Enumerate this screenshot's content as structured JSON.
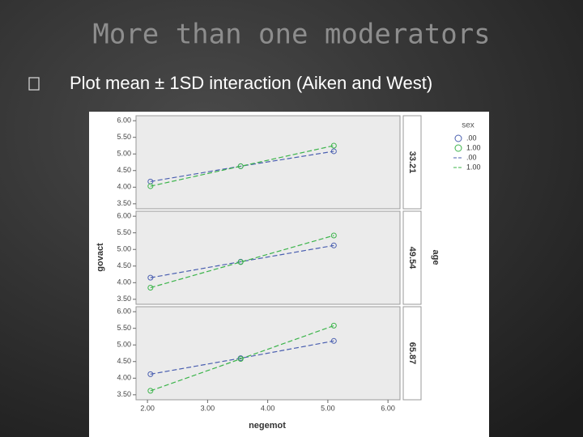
{
  "slide": {
    "title": "More than one moderators",
    "bullet": "Plot mean ± 1SD interaction (Aiken and West)"
  },
  "figure": {
    "y_label": "govact",
    "x_label": "negemot",
    "facet_label": "age",
    "legend_title": "sex"
  },
  "chart_data": [
    {
      "type": "line",
      "panel_label": "33.21",
      "x": [
        2.05,
        3.55,
        5.1
      ],
      "xlim": [
        1.81,
        6.2
      ],
      "ylim": [
        3.35,
        6.15
      ],
      "yticks": [
        {
          "value": 3.5,
          "label": "3.50"
        },
        {
          "value": 4,
          "label": "4.00"
        },
        {
          "value": 4.5,
          "label": "4.50"
        },
        {
          "value": 5,
          "label": "5.00"
        },
        {
          "value": 5.5,
          "label": "5.50"
        },
        {
          "value": 6,
          "label": "6.00"
        }
      ],
      "series": [
        {
          "name": ".00",
          "color": "#4a5fb0",
          "values": [
            4.17,
            4.63,
            5.08
          ]
        },
        {
          "name": "1.00",
          "color": "#3cb44b",
          "values": [
            4.03,
            4.63,
            5.25
          ]
        }
      ]
    },
    {
      "type": "line",
      "panel_label": "49.54",
      "x": [
        2.05,
        3.55,
        5.1
      ],
      "xlim": [
        1.81,
        6.2
      ],
      "ylim": [
        3.35,
        6.15
      ],
      "yticks": [
        {
          "value": 3.5,
          "label": "3.50"
        },
        {
          "value": 4,
          "label": "4.00"
        },
        {
          "value": 4.5,
          "label": "4.50"
        },
        {
          "value": 5,
          "label": "5.00"
        },
        {
          "value": 5.5,
          "label": "5.50"
        },
        {
          "value": 6,
          "label": "6.00"
        }
      ],
      "series": [
        {
          "name": ".00",
          "color": "#4a5fb0",
          "values": [
            4.15,
            4.63,
            5.12
          ]
        },
        {
          "name": "1.00",
          "color": "#3cb44b",
          "values": [
            3.85,
            4.62,
            5.42
          ]
        }
      ]
    },
    {
      "type": "line",
      "panel_label": "65.87",
      "x": [
        2.05,
        3.55,
        5.1
      ],
      "xlim": [
        1.81,
        6.2
      ],
      "ylim": [
        3.35,
        6.15
      ],
      "xticks": [
        {
          "value": 2,
          "label": "2.00"
        },
        {
          "value": 3,
          "label": "3.00"
        },
        {
          "value": 4,
          "label": "4.00"
        },
        {
          "value": 5,
          "label": "5.00"
        },
        {
          "value": 6,
          "label": "6.00"
        }
      ],
      "yticks": [
        {
          "value": 3.5,
          "label": "3.50"
        },
        {
          "value": 4,
          "label": "4.00"
        },
        {
          "value": 4.5,
          "label": "4.50"
        },
        {
          "value": 5,
          "label": "5.00"
        },
        {
          "value": 5.5,
          "label": "5.50"
        },
        {
          "value": 6,
          "label": "6.00"
        }
      ],
      "series": [
        {
          "name": ".00",
          "color": "#4a5fb0",
          "values": [
            4.12,
            4.6,
            5.12
          ]
        },
        {
          "name": "1.00",
          "color": "#3cb44b",
          "values": [
            3.62,
            4.58,
            5.58
          ]
        }
      ]
    }
  ]
}
